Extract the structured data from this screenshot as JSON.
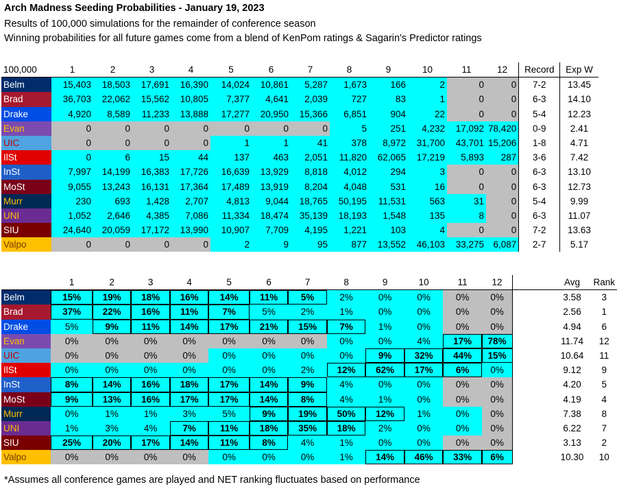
{
  "header": {
    "title": "Arch Madness Seeding Probabilities - January 19, 2023",
    "subtitle1": "Results of 100,000 simulations for the remainder of conference season",
    "subtitle2": "Winning probabilities for all future games come from a blend of KenPom ratings & Sagarin's Predictor ratings"
  },
  "table1": {
    "corner": "100,000",
    "seeds": [
      "1",
      "2",
      "3",
      "4",
      "5",
      "6",
      "7",
      "8",
      "9",
      "10",
      "11",
      "12"
    ],
    "record_label": "Record",
    "expw_label": "Exp W",
    "rows": [
      {
        "team": "Belm",
        "bg": "#002c6b",
        "fg": "#ffffff",
        "counts": [
          "15,403",
          "18,503",
          "17,691",
          "16,390",
          "14,024",
          "10,861",
          "5,287",
          "1,673",
          "166",
          "2",
          "0",
          "0"
        ],
        "shade": "ccccccccccgg",
        "record": "7-2",
        "expw": "13.45"
      },
      {
        "team": "Brad",
        "bg": "#a6192e",
        "fg": "#ffffff",
        "counts": [
          "36,703",
          "22,062",
          "15,562",
          "10,805",
          "7,377",
          "4,641",
          "2,039",
          "727",
          "83",
          "1",
          "0",
          "0"
        ],
        "shade": "ccccccccccgg",
        "record": "6-3",
        "expw": "14.10"
      },
      {
        "team": "Drake",
        "bg": "#004de6",
        "fg": "#ffffff",
        "counts": [
          "4,920",
          "8,589",
          "11,233",
          "13,888",
          "17,277",
          "20,950",
          "15,366",
          "6,851",
          "904",
          "22",
          "0",
          "0"
        ],
        "shade": "ccccccccccgg",
        "record": "5-4",
        "expw": "12.23"
      },
      {
        "team": "Evan",
        "bg": "#7b4bb0",
        "fg": "#ffc000",
        "counts": [
          "0",
          "0",
          "0",
          "0",
          "0",
          "0",
          "0",
          "5",
          "251",
          "4,232",
          "17,092",
          "78,420"
        ],
        "shade": "gggggggccccc",
        "record": "0-9",
        "expw": "2.41"
      },
      {
        "team": "UIC",
        "bg": "#4fa3e0",
        "fg": "#c00000",
        "counts": [
          "0",
          "0",
          "0",
          "0",
          "1",
          "1",
          "41",
          "378",
          "8,972",
          "31,700",
          "43,701",
          "15,206"
        ],
        "shade": "ggggcccccccc",
        "record": "1-8",
        "expw": "4.71"
      },
      {
        "team": "IlSt",
        "bg": "#e00000",
        "fg": "#ffffff",
        "counts": [
          "0",
          "6",
          "15",
          "44",
          "137",
          "463",
          "2,051",
          "11,820",
          "62,065",
          "17,219",
          "5,893",
          "287"
        ],
        "shade": "cccccccccccc",
        "record": "3-6",
        "expw": "7.42"
      },
      {
        "team": "InSt",
        "bg": "#1f5fc8",
        "fg": "#ffffff",
        "counts": [
          "7,997",
          "14,199",
          "16,383",
          "17,726",
          "16,639",
          "13,929",
          "8,818",
          "4,012",
          "294",
          "3",
          "0",
          "0"
        ],
        "shade": "ccccccccccgg",
        "record": "6-3",
        "expw": "13.10"
      },
      {
        "team": "MoSt",
        "bg": "#7a0019",
        "fg": "#ffffff",
        "counts": [
          "9,055",
          "13,243",
          "16,131",
          "17,364",
          "17,489",
          "13,919",
          "8,204",
          "4,048",
          "531",
          "16",
          "0",
          "0"
        ],
        "shade": "ccccccccccgg",
        "record": "6-3",
        "expw": "12.73"
      },
      {
        "team": "Murr",
        "bg": "#002855",
        "fg": "#ffc000",
        "counts": [
          "230",
          "693",
          "1,428",
          "2,707",
          "4,813",
          "9,044",
          "18,765",
          "50,195",
          "11,531",
          "563",
          "31",
          "0"
        ],
        "shade": "cccccccccccg",
        "record": "5-4",
        "expw": "9.99"
      },
      {
        "team": "UNI",
        "bg": "#6a2c91",
        "fg": "#ffc000",
        "counts": [
          "1,052",
          "2,646",
          "4,385",
          "7,086",
          "11,334",
          "18,474",
          "35,139",
          "18,193",
          "1,548",
          "135",
          "8",
          "0"
        ],
        "shade": "cccccccccccg",
        "record": "6-3",
        "expw": "11.07"
      },
      {
        "team": "SIU",
        "bg": "#7a0000",
        "fg": "#ffffff",
        "counts": [
          "24,640",
          "20,059",
          "17,172",
          "13,990",
          "10,907",
          "7,709",
          "4,195",
          "1,221",
          "103",
          "4",
          "0",
          "0"
        ],
        "shade": "ccccccccccgg",
        "record": "7-2",
        "expw": "13.63"
      },
      {
        "team": "Valpo",
        "bg": "#ffc000",
        "fg": "#7a3b00",
        "counts": [
          "0",
          "0",
          "0",
          "0",
          "2",
          "9",
          "95",
          "877",
          "13,552",
          "46,103",
          "33,275",
          "6,087"
        ],
        "shade": "ggggcccccccc",
        "record": "2-7",
        "expw": "5.17"
      }
    ]
  },
  "table2": {
    "seeds": [
      "1",
      "2",
      "3",
      "4",
      "5",
      "6",
      "7",
      "8",
      "9",
      "10",
      "11",
      "12"
    ],
    "avg_label": "Avg",
    "rank_label": "Rank",
    "rows": [
      {
        "pcts": [
          "15%",
          "19%",
          "18%",
          "16%",
          "14%",
          "11%",
          "5%",
          "2%",
          "0%",
          "0%",
          "0%",
          "0%"
        ],
        "bold": "111111100000",
        "box": "111111100000",
        "shade": "ccccccccccgg",
        "avg": "3.58",
        "rank": "3"
      },
      {
        "pcts": [
          "37%",
          "22%",
          "16%",
          "11%",
          "7%",
          "5%",
          "2%",
          "1%",
          "0%",
          "0%",
          "0%",
          "0%"
        ],
        "bold": "111110000000",
        "box": "111110000000",
        "shade": "ccccccccccgg",
        "avg": "2.56",
        "rank": "1"
      },
      {
        "pcts": [
          "5%",
          "9%",
          "11%",
          "14%",
          "17%",
          "21%",
          "15%",
          "7%",
          "1%",
          "0%",
          "0%",
          "0%"
        ],
        "bold": "011111110000",
        "box": "011111110000",
        "shade": "ccccccccccgg",
        "avg": "4.94",
        "rank": "6"
      },
      {
        "pcts": [
          "0%",
          "0%",
          "0%",
          "0%",
          "0%",
          "0%",
          "0%",
          "0%",
          "0%",
          "4%",
          "17%",
          "78%"
        ],
        "bold": "000000000011",
        "box": "000000000011",
        "shade": "gggggggccccc",
        "avg": "11.74",
        "rank": "12"
      },
      {
        "pcts": [
          "0%",
          "0%",
          "0%",
          "0%",
          "0%",
          "0%",
          "0%",
          "0%",
          "9%",
          "32%",
          "44%",
          "15%"
        ],
        "bold": "000000001111",
        "box": "000000001111",
        "shade": "ggggcccccccc",
        "avg": "10.64",
        "rank": "11"
      },
      {
        "pcts": [
          "0%",
          "0%",
          "0%",
          "0%",
          "0%",
          "0%",
          "2%",
          "12%",
          "62%",
          "17%",
          "6%",
          "0%"
        ],
        "bold": "000000011110",
        "box": "000000011110",
        "shade": "cccccccccccc",
        "avg": "9.12",
        "rank": "9"
      },
      {
        "pcts": [
          "8%",
          "14%",
          "16%",
          "18%",
          "17%",
          "14%",
          "9%",
          "4%",
          "0%",
          "0%",
          "0%",
          "0%"
        ],
        "bold": "111111100000",
        "box": "111111100000",
        "shade": "ccccccccccgg",
        "avg": "4.20",
        "rank": "5"
      },
      {
        "pcts": [
          "9%",
          "13%",
          "16%",
          "17%",
          "17%",
          "14%",
          "8%",
          "4%",
          "1%",
          "0%",
          "0%",
          "0%"
        ],
        "bold": "111111100000",
        "box": "111111100000",
        "shade": "ccccccccccgg",
        "avg": "4.19",
        "rank": "4"
      },
      {
        "pcts": [
          "0%",
          "1%",
          "1%",
          "3%",
          "5%",
          "9%",
          "19%",
          "50%",
          "12%",
          "1%",
          "0%",
          "0%"
        ],
        "bold": "000001111000",
        "box": "000001111000",
        "shade": "cccccccccccg",
        "avg": "7.38",
        "rank": "8"
      },
      {
        "pcts": [
          "1%",
          "3%",
          "4%",
          "7%",
          "11%",
          "18%",
          "35%",
          "18%",
          "2%",
          "0%",
          "0%",
          "0%"
        ],
        "bold": "000111110000",
        "box": "000111110000",
        "shade": "cccccccccccg",
        "avg": "6.22",
        "rank": "7"
      },
      {
        "pcts": [
          "25%",
          "20%",
          "17%",
          "14%",
          "11%",
          "8%",
          "4%",
          "1%",
          "0%",
          "0%",
          "0%",
          "0%"
        ],
        "bold": "111111000000",
        "box": "111111000000",
        "shade": "ccccccccccgg",
        "avg": "3.13",
        "rank": "2"
      },
      {
        "pcts": [
          "0%",
          "0%",
          "0%",
          "0%",
          "0%",
          "0%",
          "0%",
          "1%",
          "14%",
          "46%",
          "33%",
          "6%"
        ],
        "bold": "000000001111",
        "box": "000000001111",
        "shade": "ggggcccccccc",
        "avg": "10.30",
        "rank": "10"
      }
    ]
  },
  "footer": "*Assumes all conference games are played and NET ranking fluctuates based on performance",
  "colors": {
    "cyan": "#00ffff",
    "gray": "#bfbfbf"
  }
}
